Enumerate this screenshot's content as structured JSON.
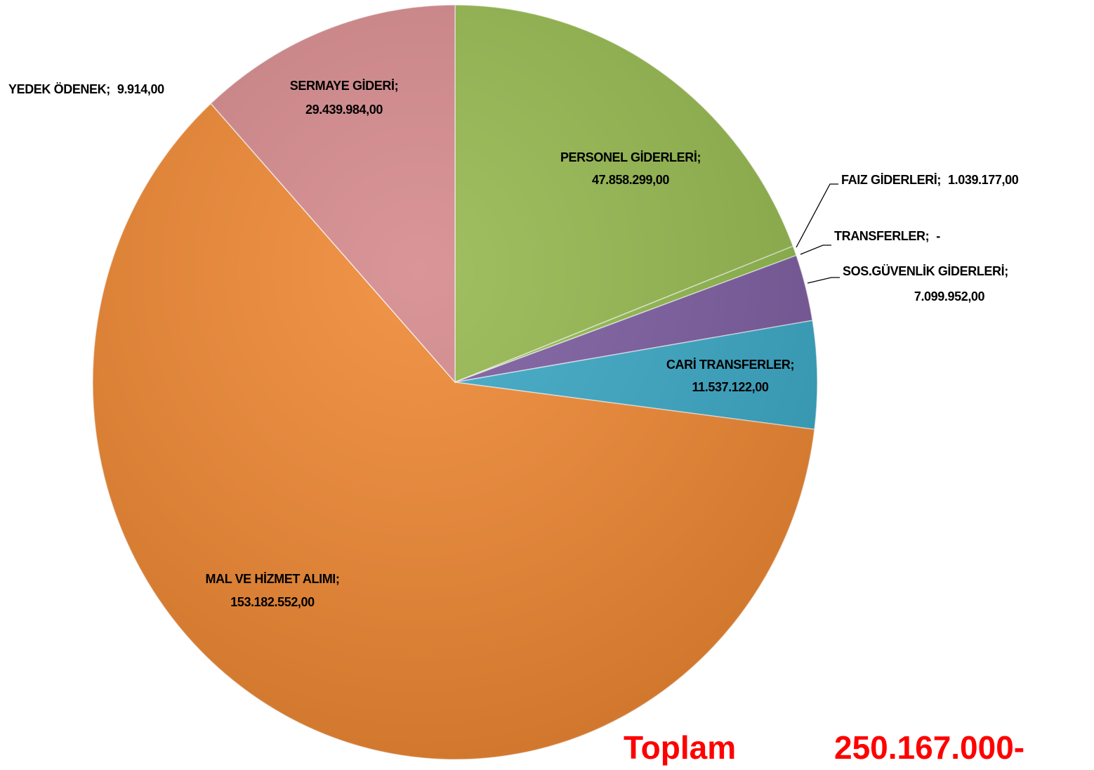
{
  "chart_data": {
    "type": "pie",
    "categories": [
      "PERSONEL GİDERLERİ",
      "FAIZ GİDERLERİ",
      "TRANSFERLER",
      "SOS.GÜVENLİK GİDERLERİ",
      "CARİ TRANSFERLER",
      "MAL VE HİZMET ALIMI",
      "YEDEK ÖDENEK",
      "SERMAYE GİDERİ"
    ],
    "values": [
      47858299,
      1039177,
      0,
      7099952,
      11537122,
      153182552,
      9914,
      29439984
    ],
    "value_labels": [
      "47.858.299,00",
      "1.039.177,00",
      "-",
      "7.099.952,00",
      "11.537.122,00",
      "153.182.552,00",
      "9.914,00",
      "29.439.984,00"
    ],
    "colors": [
      "#93b74c",
      "#8fb84a",
      "#9b9b9b",
      "#7a5a9e",
      "#38a6c4",
      "#ee8630",
      "#8fb84a",
      "#d4878a"
    ],
    "label_separator": ";",
    "total": {
      "label": "Toplam",
      "value": 250167000,
      "value_label": "250.167.000-"
    }
  }
}
